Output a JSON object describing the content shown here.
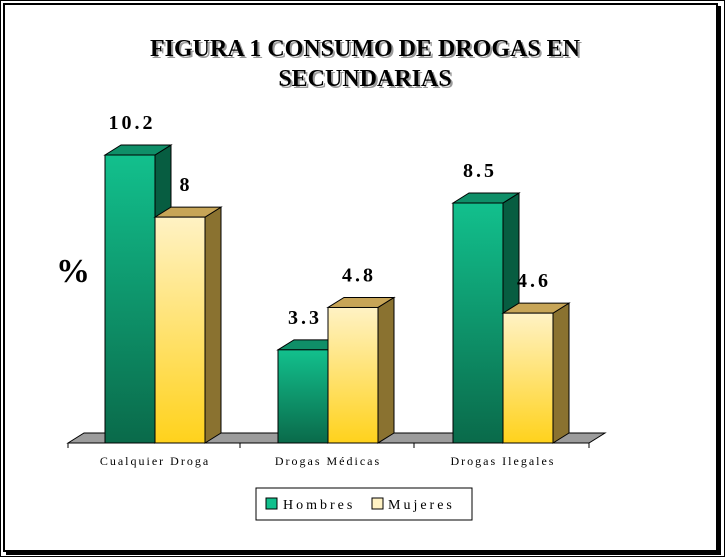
{
  "colors": {
    "hombres_front_top": "#12c08d",
    "hombres_front_bottom": "#0a6a4a",
    "hombres_side": "#075d41",
    "hombres_top": "#0f8f68",
    "mujeres_front_top": "#fff2c4",
    "mujeres_front_bottom": "#ffd21c",
    "mujeres_side": "#8a7230",
    "mujeres_top": "#c7a557",
    "floor": "#9c9c9c"
  },
  "chart_data": {
    "type": "bar",
    "title": "FIGURA 1 CONSUMO DE DROGAS EN SECUNDARIAS",
    "title_lines": [
      "FIGURA 1 CONSUMO DE DROGAS EN",
      "SECUNDARIAS"
    ],
    "xlabel": "",
    "ylabel": "%",
    "categories": [
      "Cualquier Droga",
      "Drogas Médicas",
      "Drogas Ilegales"
    ],
    "series": [
      {
        "name": "Hombres",
        "values": [
          10.2,
          3.3,
          8.5
        ],
        "labels": [
          "10.2",
          "3.3",
          "8.5"
        ]
      },
      {
        "name": "Mujeres",
        "values": [
          8,
          4.8,
          4.6
        ],
        "labels": [
          "8",
          "4.8",
          "4.6"
        ]
      }
    ],
    "ylim": [
      0,
      10.2
    ],
    "grid": false,
    "legend": "bottom",
    "style": "3d-column"
  }
}
